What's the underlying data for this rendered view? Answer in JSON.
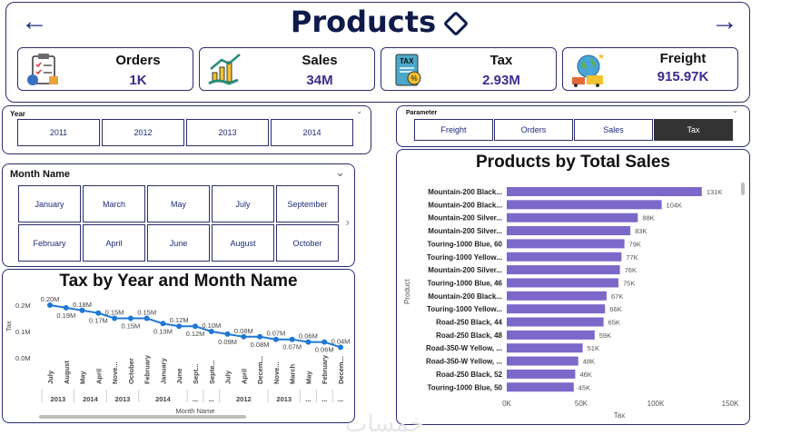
{
  "header": {
    "title": "Products",
    "back_icon": "arrow-left-icon",
    "forward_icon": "arrow-right-icon"
  },
  "kpis": [
    {
      "label": "Orders",
      "value": "1K",
      "icon": "clipboard-checklist-icon"
    },
    {
      "label": "Sales",
      "value": "34M",
      "icon": "growth-hand-icon"
    },
    {
      "label": "Tax",
      "value": "2.93M",
      "icon": "tax-document-icon"
    },
    {
      "label": "Freight",
      "value": "915.97K",
      "icon": "globe-freight-icon"
    }
  ],
  "year_slicer": {
    "title": "Year",
    "options": [
      "2011",
      "2012",
      "2013",
      "2014"
    ]
  },
  "parameter_slicer": {
    "title": "Parameter",
    "options": [
      "Freight",
      "Orders",
      "Sales",
      "Tax"
    ],
    "selected": "Tax"
  },
  "month_slicer": {
    "title": "Month Name",
    "options": [
      "January",
      "March",
      "May",
      "July",
      "September",
      "February",
      "April",
      "June",
      "August",
      "October"
    ]
  },
  "colors": {
    "accent": "#7b68c9",
    "line": "#1f77d4",
    "border": "#2b2d6e",
    "title": "#0f1a4a"
  },
  "chart_data": [
    {
      "type": "line",
      "title": "Tax by Year and Month Name",
      "xlabel": "Month Name",
      "ylabel": "Tax",
      "yticks": [
        "0.2M",
        "0.1M",
        "0.0M"
      ],
      "ylim": [
        0,
        0.2
      ],
      "x": [
        "July",
        "August",
        "May",
        "April",
        "Nove...",
        "October",
        "February",
        "January",
        "June",
        "Sept...",
        "Septe...",
        "July",
        "April",
        "Decem...",
        "Nove...",
        "March",
        "May",
        "February",
        "Decem..."
      ],
      "year_groups": [
        {
          "label": "2013",
          "count": 2
        },
        {
          "label": "2014",
          "count": 2
        },
        {
          "label": "2013",
          "count": 2
        },
        {
          "label": "2014",
          "count": 3
        },
        {
          "label": "...",
          "count": 1
        },
        {
          "label": "...",
          "count": 1
        },
        {
          "label": "2012",
          "count": 3
        },
        {
          "label": "2013",
          "count": 2
        },
        {
          "label": "...",
          "count": 1
        },
        {
          "label": "...",
          "count": 1
        },
        {
          "label": "...",
          "count": 1
        }
      ],
      "values": [
        0.2,
        0.19,
        0.18,
        0.17,
        0.15,
        0.15,
        0.15,
        0.13,
        0.12,
        0.12,
        0.1,
        0.09,
        0.08,
        0.08,
        0.07,
        0.07,
        0.06,
        0.06,
        0.04
      ],
      "data_labels": [
        "0.20M",
        "0.19M",
        "0.18M",
        "0.17M",
        "0.15M",
        "0.15M",
        "0.15M",
        "0.13M",
        "0.12M",
        "0.12M",
        "0.10M",
        "0.09M",
        "0.08M",
        "0.08M",
        "0.07M",
        "0.07M",
        "0.06M",
        "0.06M",
        "0.04M"
      ]
    },
    {
      "type": "bar",
      "orientation": "horizontal",
      "title": "Products by Total Sales",
      "xlabel": "Tax",
      "ylabel": "Product",
      "xlim": [
        0,
        150000
      ],
      "xticks": [
        "0K",
        "50K",
        "100K",
        "150K"
      ],
      "categories": [
        "Mountain-200 Black...",
        "Mountain-200 Black...",
        "Mountain-200 Silver...",
        "Mountain-200 Silver...",
        "Touring-1000 Blue, 60",
        "Touring-1000 Yellow...",
        "Mountain-200 Silver...",
        "Touring-1000 Blue, 46",
        "Mountain-200 Black...",
        "Touring-1000 Yellow...",
        "Road-250 Black, 44",
        "Road-250 Black, 48",
        "Road-350-W Yellow, ...",
        "Road-350-W Yellow, ...",
        "Road-250 Black, 52",
        "Touring-1000 Blue, 50"
      ],
      "values": [
        131000,
        104000,
        88000,
        83000,
        79000,
        77000,
        76000,
        75000,
        67000,
        66000,
        65000,
        59000,
        51000,
        48000,
        46000,
        45000
      ],
      "data_labels": [
        "131K",
        "104K",
        "88K",
        "83K",
        "79K",
        "77K",
        "76K",
        "75K",
        "67K",
        "66K",
        "65K",
        "59K",
        "51K",
        "48K",
        "46K",
        "45K"
      ]
    }
  ],
  "watermark": "خمسات"
}
